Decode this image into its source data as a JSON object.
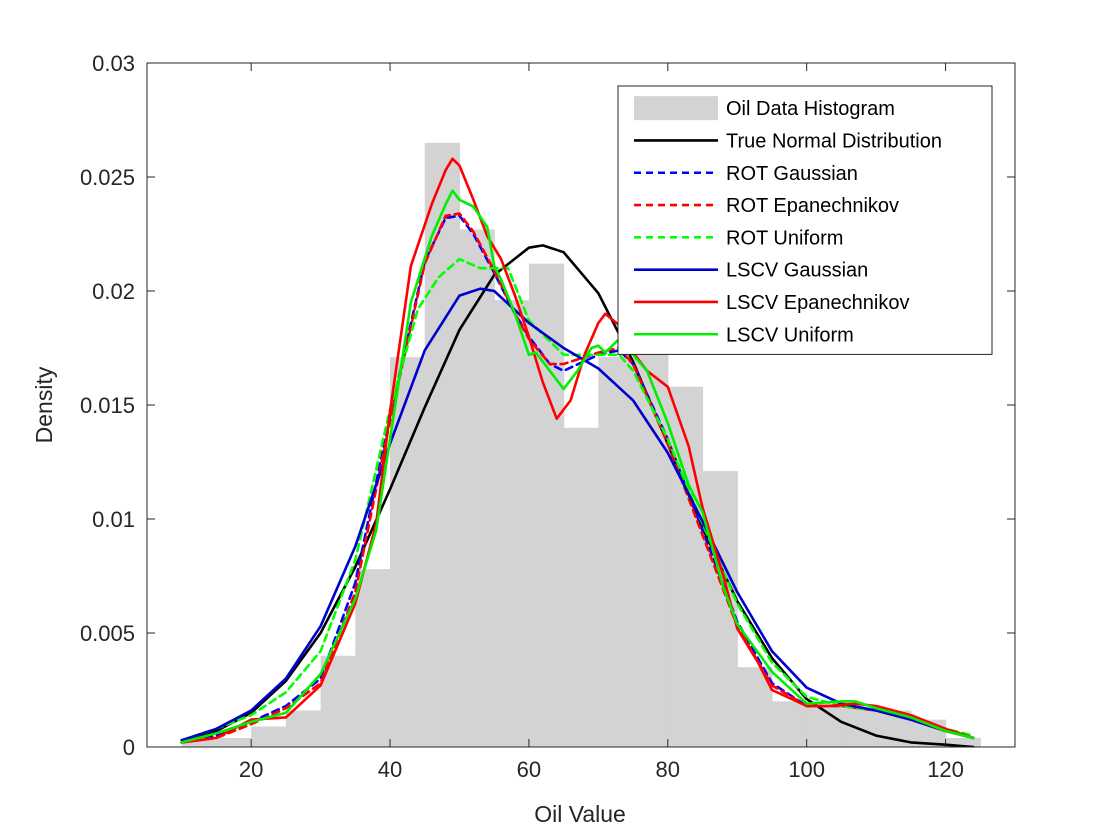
{
  "chart_data": {
    "type": "line",
    "title": "",
    "xlabel": "Oil Value",
    "ylabel": "Density",
    "xlim": [
      5,
      130
    ],
    "ylim": [
      0,
      0.03
    ],
    "xticks": [
      20,
      40,
      60,
      80,
      100,
      120
    ],
    "xtick_labels": [
      "20",
      "40",
      "60",
      "80",
      "100",
      "120"
    ],
    "yticks": [
      0,
      0.005,
      0.01,
      0.015,
      0.02,
      0.025,
      0.03
    ],
    "ytick_labels": [
      "0",
      "0.005",
      "0.01",
      "0.015",
      "0.02",
      "0.025",
      "0.03"
    ],
    "grid": false,
    "legend_position": "top-right",
    "histogram": {
      "name": "Oil Data Histogram",
      "color": "#d3d3d3",
      "bin_edges": [
        10,
        15,
        20,
        25,
        30,
        35,
        40,
        45,
        50,
        55,
        60,
        65,
        70,
        75,
        80,
        85,
        90,
        95,
        100,
        105,
        110,
        115,
        120,
        125
      ],
      "values": [
        0.0003,
        0.0004,
        0.0009,
        0.0016,
        0.004,
        0.0078,
        0.0171,
        0.0265,
        0.0227,
        0.0196,
        0.0212,
        0.014,
        0.0171,
        0.0187,
        0.0158,
        0.0121,
        0.0035,
        0.002,
        0.0018,
        0.0017,
        0.0016,
        0.0012,
        0.0004
      ]
    },
    "series": [
      {
        "name": "True Normal Distribution",
        "color": "#000000",
        "style": "solid",
        "x": [
          10,
          15,
          20,
          25,
          30,
          35,
          40,
          45,
          50,
          55,
          60,
          62,
          65,
          70,
          75,
          80,
          85,
          90,
          95,
          100,
          105,
          110,
          115,
          120,
          124
        ],
        "y": [
          0.0003,
          0.0007,
          0.0015,
          0.0029,
          0.005,
          0.0079,
          0.0113,
          0.0149,
          0.0183,
          0.0207,
          0.0219,
          0.022,
          0.0217,
          0.0199,
          0.0169,
          0.0133,
          0.0096,
          0.0064,
          0.0039,
          0.0021,
          0.0011,
          0.0005,
          0.0002,
          0.0001,
          0.0
        ]
      },
      {
        "name": "ROT Gaussian",
        "color": "#0000ff",
        "style": "dashed",
        "x": [
          10,
          15,
          20,
          25,
          30,
          35,
          40,
          45,
          48,
          50,
          52,
          55,
          58,
          60,
          63,
          65,
          70,
          73,
          75,
          80,
          85,
          90,
          95,
          100,
          105,
          110,
          115,
          120,
          124
        ],
        "y": [
          0.0002,
          0.0005,
          0.0011,
          0.0018,
          0.003,
          0.0072,
          0.0145,
          0.0213,
          0.0232,
          0.0233,
          0.0225,
          0.0208,
          0.019,
          0.018,
          0.0168,
          0.0165,
          0.0172,
          0.0174,
          0.0168,
          0.0135,
          0.0095,
          0.0055,
          0.0028,
          0.0018,
          0.0018,
          0.0016,
          0.0012,
          0.0007,
          0.0004
        ]
      },
      {
        "name": "ROT Epanechnikov",
        "color": "#ff0000",
        "style": "dashed",
        "x": [
          10,
          15,
          20,
          25,
          30,
          35,
          40,
          45,
          48,
          50,
          52,
          55,
          58,
          60,
          63,
          65,
          70,
          73,
          75,
          80,
          85,
          90,
          95,
          100,
          105,
          110,
          115,
          120,
          124
        ],
        "y": [
          0.0002,
          0.0004,
          0.001,
          0.0017,
          0.0028,
          0.0068,
          0.0143,
          0.0212,
          0.0233,
          0.0234,
          0.0226,
          0.0209,
          0.019,
          0.0179,
          0.0168,
          0.0168,
          0.0173,
          0.0175,
          0.0168,
          0.0133,
          0.0093,
          0.0053,
          0.0027,
          0.0018,
          0.0018,
          0.0016,
          0.0012,
          0.0007,
          0.0004
        ]
      },
      {
        "name": "ROT Uniform",
        "color": "#00ff00",
        "style": "dashed",
        "x": [
          10,
          15,
          20,
          25,
          30,
          35,
          40,
          44,
          47,
          50,
          53,
          55,
          57,
          60,
          63,
          65,
          70,
          73,
          75,
          80,
          85,
          90,
          95,
          100,
          105,
          110,
          115,
          120,
          124
        ],
        "y": [
          0.0003,
          0.0008,
          0.0014,
          0.0024,
          0.0042,
          0.0082,
          0.0148,
          0.0192,
          0.0206,
          0.0214,
          0.021,
          0.021,
          0.021,
          0.0187,
          0.0178,
          0.0172,
          0.0172,
          0.0172,
          0.0165,
          0.0135,
          0.0098,
          0.0063,
          0.0037,
          0.0022,
          0.0018,
          0.0016,
          0.0012,
          0.0008,
          0.0005
        ]
      },
      {
        "name": "LSCV Gaussian",
        "color": "#0000cd",
        "style": "solid",
        "x": [
          10,
          15,
          20,
          25,
          30,
          35,
          40,
          45,
          50,
          53,
          55,
          60,
          65,
          70,
          75,
          80,
          85,
          90,
          95,
          100,
          105,
          110,
          115,
          120,
          124
        ],
        "y": [
          0.0003,
          0.0008,
          0.0016,
          0.003,
          0.0053,
          0.0088,
          0.0133,
          0.0174,
          0.0198,
          0.0201,
          0.02,
          0.0186,
          0.0175,
          0.0166,
          0.0152,
          0.0129,
          0.0099,
          0.0068,
          0.0042,
          0.0026,
          0.0019,
          0.0016,
          0.0012,
          0.0007,
          0.0004
        ]
      },
      {
        "name": "LSCV Epanechnikov",
        "color": "#ff0000",
        "style": "solid",
        "x": [
          10,
          15,
          20,
          25,
          30,
          35,
          38,
          40,
          43,
          46,
          48,
          49,
          50,
          52,
          54,
          56,
          58,
          60,
          62,
          64,
          66,
          68,
          70,
          71,
          73,
          75,
          77,
          80,
          83,
          85,
          88,
          90,
          93,
          95,
          100,
          103,
          107,
          110,
          115,
          120,
          124
        ],
        "y": [
          0.0002,
          0.0004,
          0.0012,
          0.0013,
          0.0027,
          0.0063,
          0.0098,
          0.0147,
          0.0211,
          0.0238,
          0.0253,
          0.0258,
          0.0255,
          0.024,
          0.0224,
          0.0214,
          0.0198,
          0.018,
          0.016,
          0.0144,
          0.0152,
          0.0172,
          0.0186,
          0.019,
          0.0185,
          0.0173,
          0.0165,
          0.0158,
          0.0132,
          0.0105,
          0.0075,
          0.0052,
          0.0037,
          0.0025,
          0.0018,
          0.0018,
          0.0019,
          0.0018,
          0.0014,
          0.0008,
          0.0004
        ]
      },
      {
        "name": "LSCV Uniform",
        "color": "#00ee00",
        "style": "solid",
        "x": [
          10,
          15,
          20,
          25,
          30,
          35,
          38,
          40,
          43,
          46,
          48,
          49,
          50,
          52,
          54,
          55,
          56,
          58,
          60,
          61,
          63,
          65,
          67,
          69,
          70,
          71,
          73,
          75,
          77,
          80,
          83,
          85,
          88,
          90,
          95,
          100,
          105,
          107,
          110,
          115,
          120,
          124
        ],
        "y": [
          0.0002,
          0.0006,
          0.0011,
          0.0015,
          0.0032,
          0.0065,
          0.0095,
          0.0135,
          0.0195,
          0.0224,
          0.0238,
          0.0244,
          0.024,
          0.0237,
          0.0228,
          0.0211,
          0.0205,
          0.019,
          0.0172,
          0.0173,
          0.0165,
          0.0157,
          0.0165,
          0.0175,
          0.0176,
          0.0173,
          0.0179,
          0.0172,
          0.0165,
          0.0142,
          0.0115,
          0.0103,
          0.007,
          0.0054,
          0.0033,
          0.0019,
          0.002,
          0.002,
          0.0017,
          0.0013,
          0.0007,
          0.0004
        ]
      }
    ]
  }
}
